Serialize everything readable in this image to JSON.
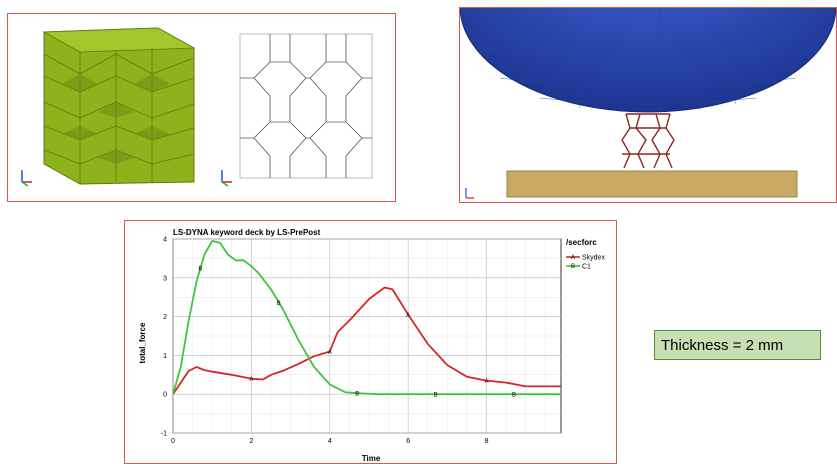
{
  "panels": {
    "lattice_solid": {},
    "lattice_wire": {},
    "impact_sim": {}
  },
  "label_box": {
    "text": "Thickness = 2 mm"
  },
  "chart_data": {
    "type": "line",
    "title": "LS-DYNA keyword deck by LS-PrePost",
    "xlabel": "Time",
    "ylabel": "total_force",
    "xlim": [
      0,
      9.9
    ],
    "ylim": [
      -1,
      4
    ],
    "xticks": [
      0,
      2,
      4,
      6,
      8
    ],
    "yticks": [
      -1,
      0,
      1,
      2,
      3,
      4
    ],
    "grid": true,
    "legend_title": "/secforc",
    "legend_position": "right",
    "series": [
      {
        "name": "Skydex",
        "marker": "A",
        "color": "#d62728",
        "x": [
          0,
          0.2,
          0.4,
          0.6,
          0.8,
          1.0,
          1.5,
          2.0,
          2.3,
          2.5,
          2.8,
          3.2,
          3.6,
          4.0,
          4.2,
          4.5,
          5.0,
          5.4,
          5.6,
          6.0,
          6.5,
          7.0,
          7.5,
          8.0,
          8.5,
          9.0,
          9.9
        ],
        "y": [
          0,
          0.3,
          0.6,
          0.7,
          0.62,
          0.58,
          0.5,
          0.4,
          0.38,
          0.5,
          0.6,
          0.78,
          0.98,
          1.1,
          1.6,
          1.9,
          2.45,
          2.75,
          2.7,
          2.05,
          1.3,
          0.75,
          0.45,
          0.35,
          0.3,
          0.2,
          0.2
        ],
        "marker_x": [
          2.0,
          4.0,
          6.0,
          8.0
        ]
      },
      {
        "name": "C1",
        "marker": "B",
        "color": "#3ec43e",
        "x": [
          0,
          0.2,
          0.4,
          0.6,
          0.8,
          1.0,
          1.2,
          1.4,
          1.6,
          1.8,
          2.0,
          2.2,
          2.5,
          2.8,
          3.2,
          3.6,
          4.0,
          4.4,
          4.8,
          5.2,
          6.0,
          7.0,
          8.0,
          9.0,
          9.9
        ],
        "y": [
          0,
          0.7,
          1.9,
          2.9,
          3.6,
          3.95,
          3.9,
          3.6,
          3.45,
          3.45,
          3.3,
          3.1,
          2.7,
          2.2,
          1.4,
          0.7,
          0.25,
          0.05,
          0.02,
          0.0,
          0.0,
          0.0,
          0.0,
          0.0,
          0.0
        ],
        "marker_x": [
          0.7,
          2.7,
          4.7,
          6.7,
          8.7
        ]
      }
    ]
  }
}
